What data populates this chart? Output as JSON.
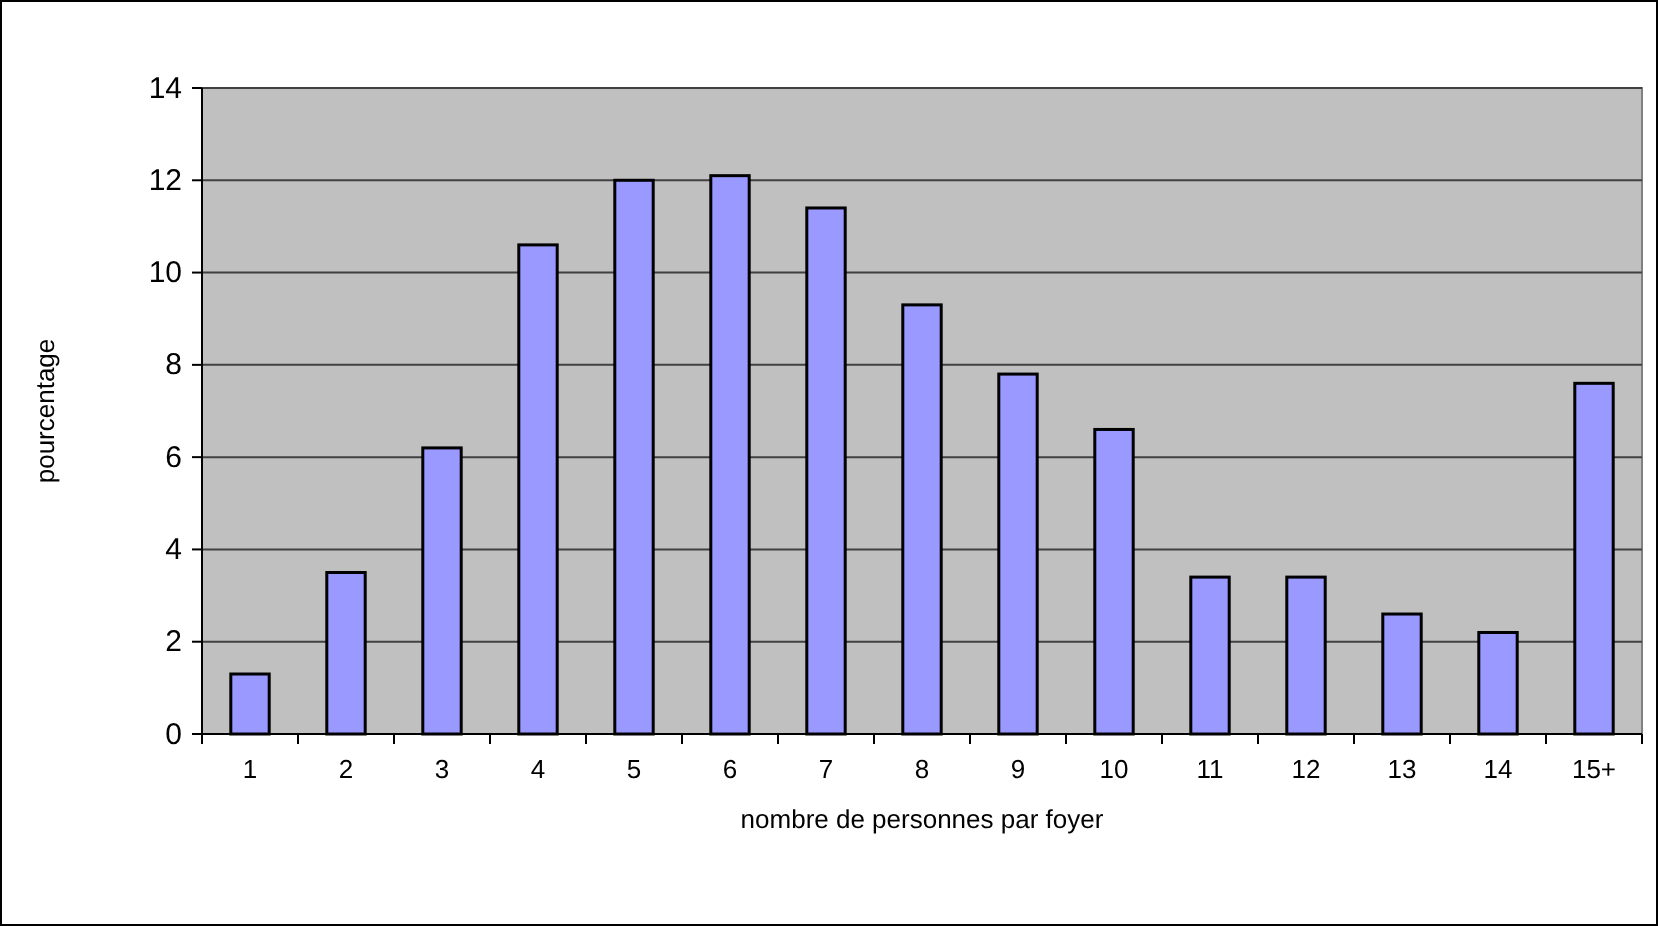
{
  "chart_data": {
    "type": "bar",
    "xlabel": "nombre de personnes par foyer",
    "ylabel": "pourcentage",
    "categories": [
      "1",
      "2",
      "3",
      "4",
      "5",
      "6",
      "7",
      "8",
      "9",
      "10",
      "11",
      "12",
      "13",
      "14",
      "15+"
    ],
    "values": [
      1.3,
      3.5,
      6.2,
      10.6,
      12.0,
      12.1,
      11.4,
      9.3,
      7.8,
      6.6,
      3.4,
      3.4,
      2.6,
      2.2,
      7.6
    ],
    "color": "#9999ff",
    "ylim": [
      0,
      14
    ],
    "yticks": [
      0,
      2,
      4,
      6,
      8,
      10,
      12,
      14
    ],
    "grid": "y",
    "legend": false
  }
}
